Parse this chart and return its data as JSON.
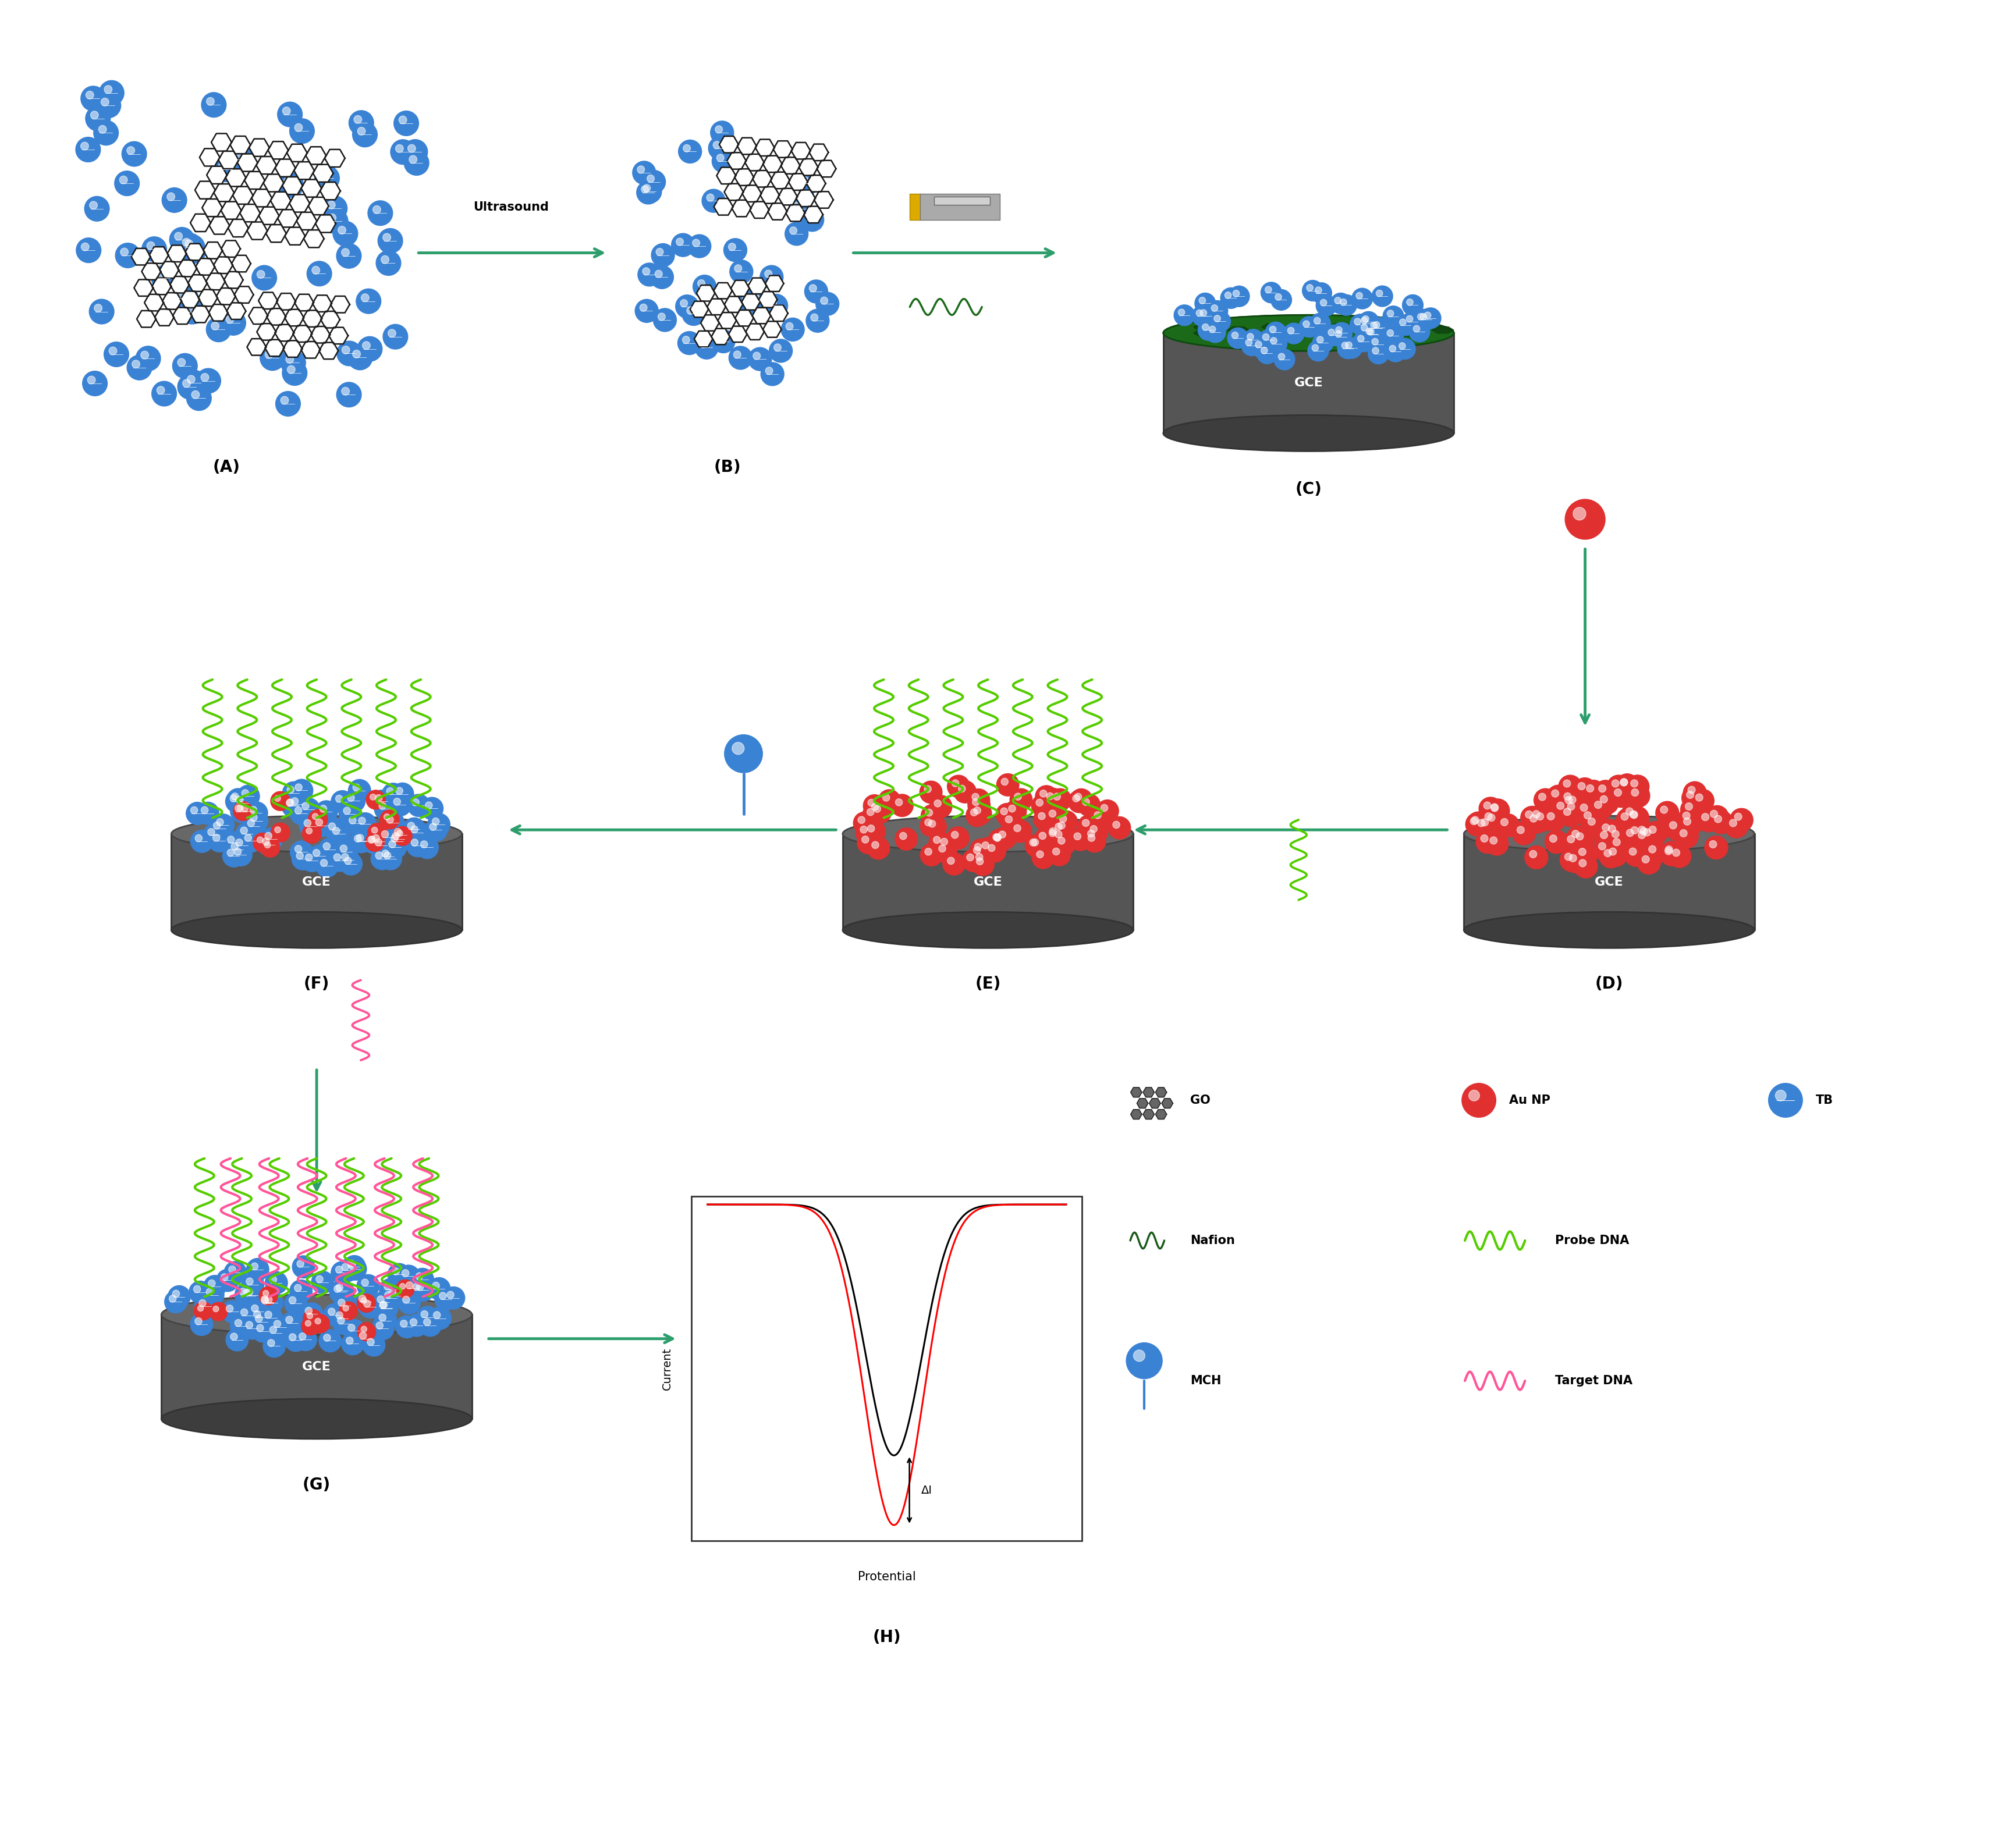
{
  "background_color": "#ffffff",
  "arrow_color": "#2d9e6b",
  "gce_body_color": "#555555",
  "gce_text": "GCE",
  "go_color": "#1a1a1a",
  "tb_color": "#3a82d4",
  "aunp_color": "#e03030",
  "nafion_color": "#1a6a1a",
  "probe_dna_color": "#55cc00",
  "target_dna_color": "#ff5599",
  "mch_color": "#3a82d4",
  "ultrasound_text": "Ultrasound",
  "potential_text": "Protential",
  "current_text": "Current",
  "delta_i_text": "ΔI",
  "panel_labels": [
    "(A)",
    "(B)",
    "(C)",
    "(D)",
    "(E)",
    "(F)",
    "(G)",
    "(H)"
  ],
  "legend_go": "GO",
  "legend_aunp": "Au NP",
  "legend_tb": "TB",
  "legend_nafion": "Nafion",
  "legend_probe": "Probe DNA",
  "legend_mch": "MCH",
  "legend_target": "Target DNA"
}
